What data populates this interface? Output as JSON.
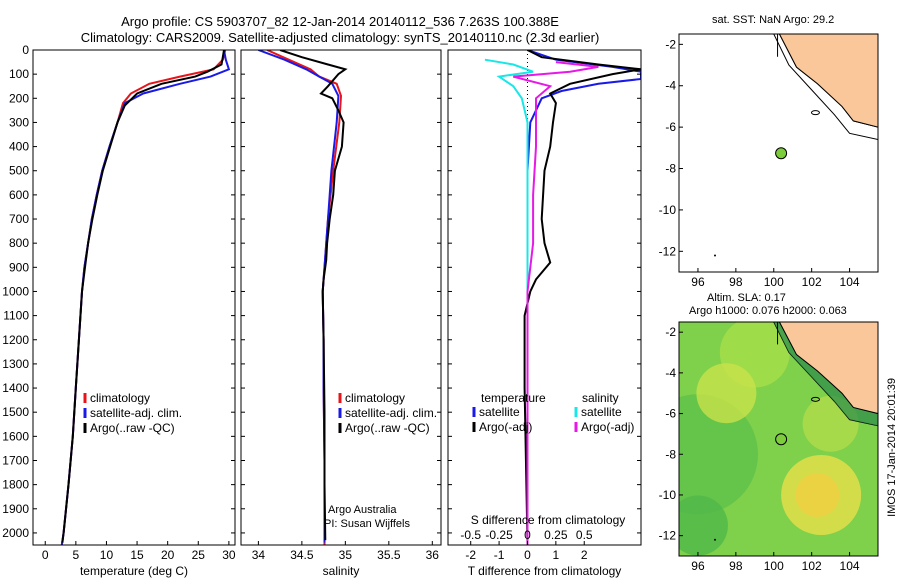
{
  "title_line1": "Argo profile: CS 5903707_82 12-Jan-2014 20140112_536 7.263S 100.388E",
  "title_line2": "Climatology: CARS2009. Satellite-adjusted climatology: synTS_20140110.nc (2.3d earlier)",
  "map1_title": "sat. SST: NaN Argo: 29.2",
  "map2_title_line1": "Altim. SLA: 0.17",
  "map2_title_line2": "Argo h1000: 0.076 h2000: 0.063",
  "footer": "IMOS 17-Jan-2014 20:01:39",
  "colors": {
    "climatology": "#e8141a",
    "satellite": "#1a1ae8",
    "argo": "#000000",
    "salinity_sat": "#19e6e6",
    "salinity_argo": "#e619e6",
    "land": "#f9c79a"
  },
  "chart_data": [
    {
      "type": "line",
      "name": "temperature",
      "xlabel": "temperature (deg C)",
      "ylabel": "",
      "xlim": [
        -2,
        31
      ],
      "ylim": [
        2050,
        0
      ],
      "xticks": [
        "0",
        "5",
        "10",
        "15",
        "20",
        "25",
        "30"
      ],
      "yticks": [
        "0",
        "100",
        "200",
        "300",
        "400",
        "500",
        "600",
        "700",
        "800",
        "900",
        "1000",
        "1100",
        "1200",
        "1300",
        "1400",
        "1500",
        "1600",
        "1700",
        "1800",
        "1900",
        "2000"
      ],
      "legend": [
        "climatology",
        "satellite-adj. clim.",
        "Argo(..raw -QC)"
      ],
      "series": [
        {
          "name": "climatology",
          "points": [
            [
              29.4,
              0
            ],
            [
              29.0,
              40
            ],
            [
              27.5,
              80
            ],
            [
              22,
              110
            ],
            [
              17,
              140
            ],
            [
              14,
              180
            ],
            [
              12.7,
              220
            ],
            [
              11.8,
              300
            ],
            [
              10.5,
              400
            ],
            [
              9.3,
              500
            ],
            [
              8.4,
              600
            ],
            [
              7.6,
              700
            ],
            [
              7,
              800
            ],
            [
              6.4,
              900
            ],
            [
              6,
              1000
            ],
            [
              5.5,
              1200
            ],
            [
              5,
              1400
            ],
            [
              4.5,
              1600
            ],
            [
              3.8,
              1800
            ],
            [
              3.0,
              2000
            ],
            [
              2.7,
              2050
            ]
          ]
        },
        {
          "name": "satellite-adj. clim.",
          "points": [
            [
              29.2,
              0
            ],
            [
              29.5,
              40
            ],
            [
              30.0,
              80
            ],
            [
              27,
              110
            ],
            [
              22,
              140
            ],
            [
              16,
              180
            ],
            [
              13,
              220
            ],
            [
              11.8,
              300
            ],
            [
              10.5,
              400
            ],
            [
              9.3,
              500
            ],
            [
              8.4,
              600
            ],
            [
              7.6,
              700
            ],
            [
              7,
              800
            ],
            [
              6.4,
              900
            ],
            [
              6,
              1000
            ],
            [
              5.5,
              1200
            ],
            [
              5,
              1400
            ],
            [
              4.5,
              1600
            ],
            [
              3.8,
              1800
            ],
            [
              3.0,
              2000
            ],
            [
              2.7,
              2050
            ]
          ]
        },
        {
          "name": "Argo(..raw -QC)",
          "points": [
            [
              29.2,
              0
            ],
            [
              29.0,
              30
            ],
            [
              28.8,
              60
            ],
            [
              26.5,
              90
            ],
            [
              24.5,
              110
            ],
            [
              19,
              140
            ],
            [
              15,
              180
            ],
            [
              13,
              230
            ],
            [
              11.8,
              300
            ],
            [
              10.6,
              400
            ],
            [
              9.4,
              500
            ],
            [
              8.5,
              600
            ],
            [
              7.7,
              700
            ],
            [
              7,
              800
            ],
            [
              6.5,
              900
            ],
            [
              6,
              1000
            ],
            [
              5.5,
              1200
            ],
            [
              5,
              1400
            ],
            [
              4.5,
              1600
            ],
            [
              3.8,
              1800
            ],
            [
              3.0,
              2000
            ],
            [
              2.8,
              2040
            ]
          ]
        }
      ]
    },
    {
      "type": "line",
      "name": "salinity",
      "xlabel": "salinity",
      "ylabel": "",
      "xlim": [
        33.8,
        36.1
      ],
      "ylim": [
        2050,
        0
      ],
      "xticks": [
        "34",
        "34.5",
        "35",
        "35.5",
        "36"
      ],
      "legend": [
        "climatology",
        "satellite-adj. clim.",
        "Argo(..raw -QC)"
      ],
      "annotations": [
        "Argo Australia",
        "PI: Susan Wijffels"
      ],
      "series": [
        {
          "name": "climatology",
          "points": [
            [
              34.1,
              0
            ],
            [
              34.35,
              40
            ],
            [
              34.6,
              80
            ],
            [
              34.7,
              110
            ],
            [
              34.9,
              140
            ],
            [
              34.95,
              190
            ],
            [
              34.93,
              300
            ],
            [
              34.86,
              500
            ],
            [
              34.8,
              700
            ],
            [
              34.76,
              900
            ],
            [
              34.74,
              1000
            ],
            [
              34.75,
              1200
            ],
            [
              34.75,
              1400
            ],
            [
              34.76,
              1700
            ],
            [
              34.76,
              2050
            ]
          ]
        },
        {
          "name": "satellite-adj. clim.",
          "points": [
            [
              34.0,
              0
            ],
            [
              34.3,
              40
            ],
            [
              34.55,
              80
            ],
            [
              34.7,
              110
            ],
            [
              34.85,
              140
            ],
            [
              34.92,
              190
            ],
            [
              34.9,
              300
            ],
            [
              34.84,
              500
            ],
            [
              34.8,
              700
            ],
            [
              34.76,
              900
            ],
            [
              34.74,
              1000
            ],
            [
              34.75,
              1200
            ],
            [
              34.75,
              1400
            ],
            [
              34.76,
              1700
            ],
            [
              34.76,
              2000
            ],
            [
              34.76,
              2040
            ]
          ]
        },
        {
          "name": "Argo(..raw -QC)",
          "points": [
            [
              34.25,
              0
            ],
            [
              34.5,
              30
            ],
            [
              34.8,
              60
            ],
            [
              35.0,
              80
            ],
            [
              34.92,
              100
            ],
            [
              34.8,
              150
            ],
            [
              34.72,
              180
            ],
            [
              34.85,
              200
            ],
            [
              34.92,
              250
            ],
            [
              34.98,
              300
            ],
            [
              34.96,
              400
            ],
            [
              34.88,
              500
            ],
            [
              34.86,
              600
            ],
            [
              34.82,
              700
            ],
            [
              34.79,
              800
            ],
            [
              34.78,
              870
            ],
            [
              34.75,
              950
            ],
            [
              34.74,
              1000
            ],
            [
              34.75,
              1200
            ],
            [
              34.76,
              1500
            ],
            [
              34.76,
              1800
            ],
            [
              34.77,
              2030
            ]
          ]
        }
      ]
    },
    {
      "type": "line",
      "name": "differences",
      "xlabel": "T difference from climatology",
      "top_axis_label": "S difference from climatology",
      "xlim": [
        -2.8,
        4.0
      ],
      "ylim": [
        2050,
        0
      ],
      "xticks": [
        "-2",
        "-1",
        "0",
        "1",
        "2"
      ],
      "top_xticks": [
        "-0.5",
        "-0.25",
        "0",
        "0.25",
        "0.5"
      ],
      "legend": {
        "temperature": [
          "satellite",
          "Argo(-adj)"
        ],
        "salinity": [
          "satellite",
          "Argo(-adj)"
        ]
      },
      "series": [
        {
          "name": "temperature satellite",
          "points": [
            [
              0,
              0
            ],
            [
              1.0,
              40
            ],
            [
              3.0,
              70
            ],
            [
              4.0,
              90
            ],
            [
              4.0,
              120
            ],
            [
              2.5,
              140
            ],
            [
              1.2,
              170
            ],
            [
              0.5,
              200
            ],
            [
              0.1,
              300
            ],
            [
              0,
              500
            ],
            [
              0,
              2050
            ]
          ]
        },
        {
          "name": "temperature Argo(-adj)",
          "points": [
            [
              0,
              0
            ],
            [
              0.5,
              30
            ],
            [
              2.5,
              60
            ],
            [
              4.0,
              80
            ],
            [
              3.0,
              100
            ],
            [
              1.5,
              140
            ],
            [
              0.8,
              180
            ],
            [
              1.0,
              220
            ],
            [
              0.9,
              300
            ],
            [
              0.8,
              400
            ],
            [
              0.6,
              500
            ],
            [
              0.5,
              700
            ],
            [
              0.6,
              800
            ],
            [
              0.8,
              880
            ],
            [
              0.3,
              950
            ],
            [
              0.1,
              1000
            ],
            [
              -0.1,
              1100
            ],
            [
              -0.1,
              1400
            ],
            [
              0,
              2050
            ]
          ]
        },
        {
          "name": "salinity satellite",
          "points": [
            [
              -1.5,
              40
            ],
            [
              -0.5,
              60
            ],
            [
              0.2,
              90
            ],
            [
              -1.0,
              110
            ],
            [
              -0.5,
              150
            ],
            [
              -0.2,
              200
            ],
            [
              0,
              300
            ],
            [
              0,
              2050
            ]
          ]
        },
        {
          "name": "salinity Argo(-adj)",
          "points": [
            [
              1.0,
              50
            ],
            [
              2.5,
              70
            ],
            [
              1.5,
              90
            ],
            [
              -0.5,
              110
            ],
            [
              0.8,
              150
            ],
            [
              0.3,
              200
            ],
            [
              0.3,
              400
            ],
            [
              0.2,
              600
            ],
            [
              0.2,
              800
            ],
            [
              0,
              1000
            ],
            [
              0,
              2050
            ]
          ]
        }
      ]
    },
    {
      "type": "scatter",
      "name": "map sst",
      "xlim": [
        95,
        105.5
      ],
      "ylim": [
        -13,
        -1.5
      ],
      "xticks": [
        "96",
        "98",
        "100",
        "102",
        "104"
      ],
      "yticks": [
        "-2",
        "-4",
        "-6",
        "-8",
        "-10",
        "-12"
      ],
      "points": [
        [
          100.388,
          -7.263
        ]
      ]
    },
    {
      "type": "heatmap",
      "name": "map sla",
      "xlim": [
        95,
        105.5
      ],
      "ylim": [
        -13,
        -1.5
      ],
      "xticks": [
        "96",
        "98",
        "100",
        "102",
        "104"
      ],
      "yticks": [
        "-2",
        "-4",
        "-6",
        "-8",
        "-10",
        "-12"
      ],
      "points": [
        [
          100.388,
          -7.263
        ]
      ]
    }
  ]
}
